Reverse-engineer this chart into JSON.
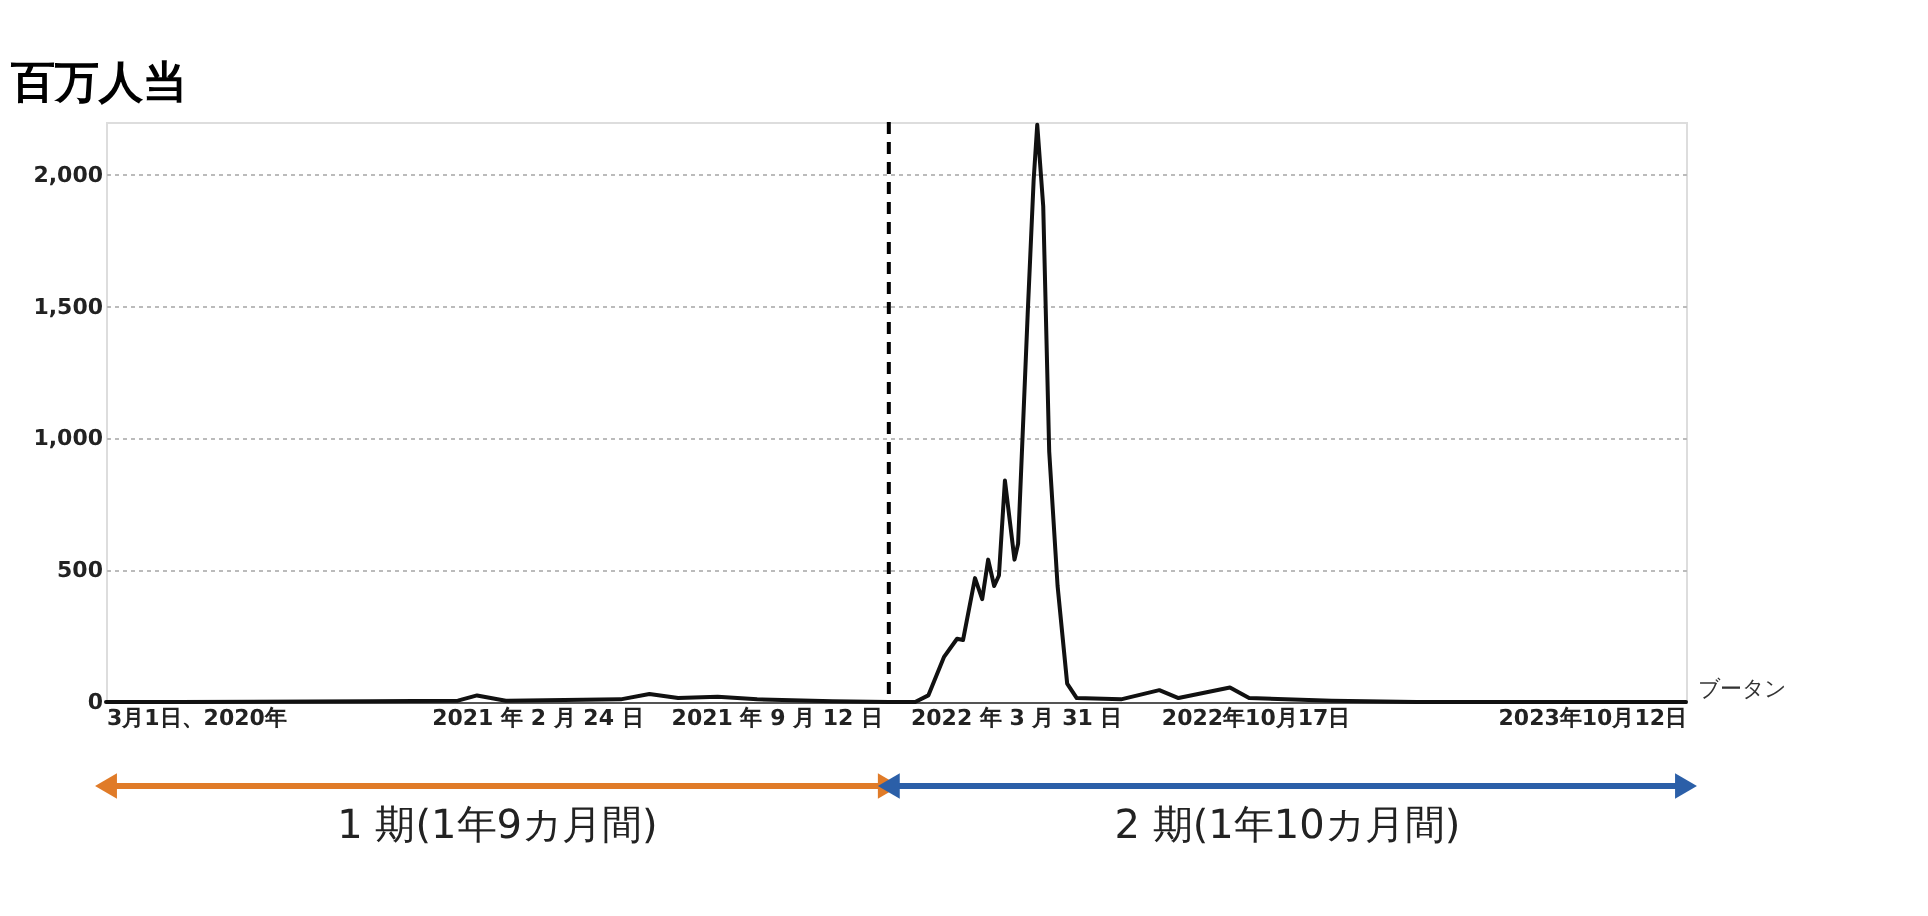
{
  "chart_data": {
    "type": "line",
    "ylabel": "百万人当",
    "x": [
      "2020-03-01",
      "2020-05-01",
      "2020-10-08",
      "2020-12-20",
      "2021-01-05",
      "2021-01-29",
      "2021-05-05",
      "2021-05-29",
      "2021-06-22",
      "2021-07-25",
      "2021-08-27",
      "2021-10-29",
      "2021-12-15",
      "2022-01-06",
      "2022-01-17",
      "2022-01-30",
      "2022-02-10",
      "2022-02-15",
      "2022-02-25",
      "2022-03-03",
      "2022-03-08",
      "2022-03-13",
      "2022-03-17",
      "2022-03-22",
      "2022-03-30",
      "2022-04-02",
      "2022-04-10",
      "2022-04-15",
      "2022-04-18",
      "2022-04-23",
      "2022-04-28",
      "2022-05-05",
      "2022-05-13",
      "2022-05-21",
      "2022-06-27",
      "2022-07-29",
      "2022-08-14",
      "2022-09-26",
      "2022-10-12",
      "2022-12-20",
      "2023-03-01",
      "2023-10-12"
    ],
    "series": [
      {
        "name": "ブータン",
        "color": "#111111",
        "values": [
          0,
          0,
          3,
          5,
          25,
          5,
          10,
          30,
          15,
          20,
          10,
          3,
          0,
          0,
          25,
          170,
          240,
          235,
          470,
          390,
          540,
          440,
          480,
          840,
          540,
          600,
          1470,
          1980,
          2190,
          1880,
          950,
          440,
          70,
          15,
          10,
          45,
          15,
          55,
          15,
          5,
          0,
          0
        ]
      }
    ],
    "xlim": [
      "2020-03-01",
      "2023-10-12"
    ],
    "xticks": [
      {
        "value": "2020-03-01",
        "label": "3月1日、2020年"
      },
      {
        "value": "2021-02-24",
        "label": "2021 年 2 月 24 日"
      },
      {
        "value": "2021-09-12",
        "label": "2021 年 9 月 12 日"
      },
      {
        "value": "2022-03-31",
        "label": "2022 年 3 月 31 日"
      },
      {
        "value": "2022-10-17",
        "label": "2022年10月17日"
      },
      {
        "value": "2023-10-12",
        "label": "2023年10月12日"
      }
    ],
    "ylim": [
      0,
      2200
    ],
    "yticks": [
      {
        "value": 0,
        "label": "0"
      },
      {
        "value": 500,
        "label": "500"
      },
      {
        "value": 1000,
        "label": "1,000"
      },
      {
        "value": 1500,
        "label": "1,500"
      },
      {
        "value": 2000,
        "label": "2,000"
      }
    ],
    "grid": "y",
    "marker": "none",
    "line_style": "solid",
    "ref_lines": [
      {
        "axis": "x",
        "value": "2021-12-15",
        "label": null,
        "color": "#000000",
        "line_style": "dashed"
      }
    ],
    "annotations": [
      "1 期(1年9カ月間)",
      "2 期(1年10カ月間)"
    ]
  }
}
